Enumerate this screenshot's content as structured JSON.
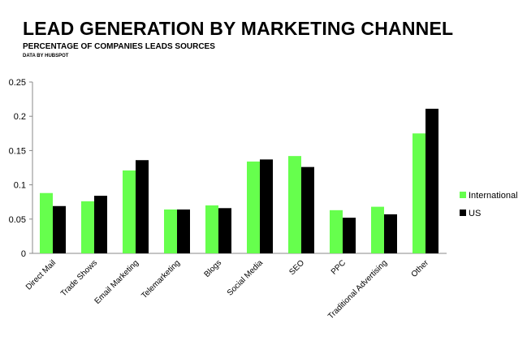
{
  "header": {
    "title": "LEAD GENERATION BY MARKETING CHANNEL",
    "subtitle": "PERCENTAGE OF COMPANIES LEADS SOURCES",
    "source": "DATA BY HUBSPOT"
  },
  "chart_data": {
    "type": "bar",
    "title": "LEAD GENERATION BY MARKETING CHANNEL",
    "subtitle": "PERCENTAGE OF COMPANIES LEADS SOURCES",
    "xlabel": "",
    "ylabel": "",
    "ylim": [
      0,
      0.25
    ],
    "yticks": [
      "0",
      "0.05",
      "0.1",
      "0.15",
      "0.2",
      "0.25"
    ],
    "grid": false,
    "legend_position": "right",
    "categories": [
      "Direct Mail",
      "Trade Shows",
      "Email Marketing",
      "Telemarketing",
      "Blogs",
      "Social Media",
      "SEO",
      "PPC",
      "Traditional Advertising",
      "Other"
    ],
    "series": [
      {
        "name": "International",
        "color": "#66ff4d",
        "values": [
          0.088,
          0.076,
          0.121,
          0.064,
          0.07,
          0.134,
          0.142,
          0.063,
          0.068,
          0.175
        ]
      },
      {
        "name": "US",
        "color": "#000000",
        "values": [
          0.069,
          0.084,
          0.136,
          0.064,
          0.066,
          0.137,
          0.126,
          0.052,
          0.057,
          0.211
        ]
      }
    ]
  }
}
